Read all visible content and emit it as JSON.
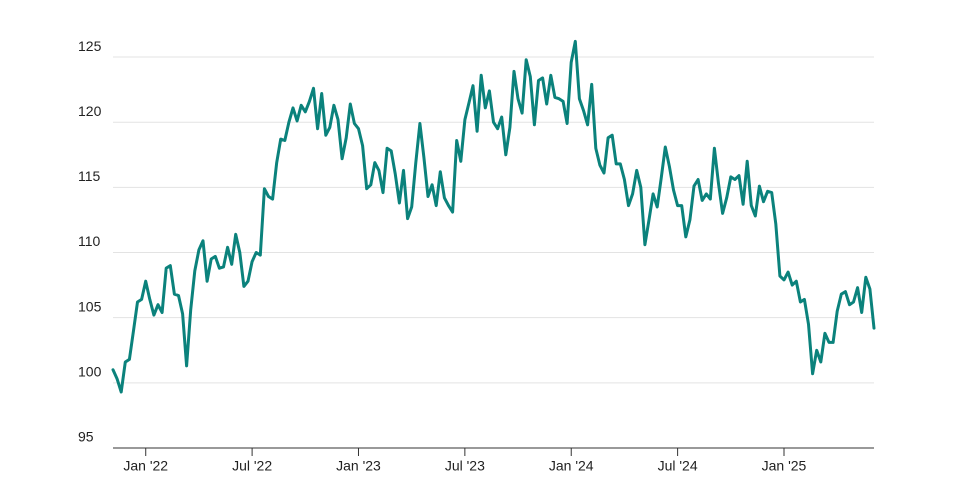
{
  "chart_data": {
    "type": "line",
    "categories": [
      null,
      null,
      null,
      null,
      null,
      null,
      null,
      null,
      "Jan '22",
      null,
      null,
      null,
      null,
      null,
      null,
      null,
      null,
      null,
      null,
      null,
      null,
      null,
      null,
      null,
      null,
      null,
      null,
      null,
      null,
      null,
      null,
      null,
      null,
      null,
      "Jul '22",
      null,
      null,
      null,
      null,
      null,
      null,
      null,
      null,
      null,
      null,
      null,
      null,
      null,
      null,
      null,
      null,
      null,
      null,
      null,
      null,
      null,
      null,
      null,
      null,
      null,
      "Jan '23",
      null,
      null,
      null,
      null,
      null,
      null,
      null,
      null,
      null,
      null,
      null,
      null,
      null,
      null,
      null,
      null,
      null,
      null,
      null,
      null,
      null,
      null,
      null,
      null,
      null,
      "Jul '23",
      null,
      null,
      null,
      null,
      null,
      null,
      null,
      null,
      null,
      null,
      null,
      null,
      null,
      null,
      null,
      null,
      null,
      null,
      null,
      null,
      null,
      null,
      null,
      null,
      null,
      "Jan '24",
      null,
      null,
      null,
      null,
      null,
      null,
      null,
      null,
      null,
      null,
      null,
      null,
      null,
      null,
      null,
      null,
      null,
      null,
      null,
      null,
      null,
      null,
      null,
      null,
      null,
      "Jul '24",
      null,
      null,
      null,
      null,
      null,
      null,
      null,
      null,
      null,
      null,
      null,
      null,
      null,
      null,
      null,
      null,
      null,
      null,
      null,
      null,
      null,
      null,
      null,
      null,
      null,
      "Jan '25",
      null,
      null,
      null,
      null,
      null,
      null,
      null,
      null,
      null,
      null,
      null,
      null,
      null,
      null,
      null,
      null,
      null,
      null,
      null,
      null,
      null,
      null
    ],
    "series": [
      {
        "color": "#0b827c",
        "values": [
          101.0,
          100.3,
          99.3,
          101.6,
          101.8,
          104.0,
          106.2,
          106.4,
          107.8,
          106.4,
          105.2,
          106.0,
          105.4,
          108.8,
          109.0,
          106.8,
          106.7,
          105.3,
          101.3,
          105.6,
          108.6,
          110.2,
          110.9,
          107.8,
          109.5,
          109.7,
          108.8,
          108.9,
          110.4,
          109.1,
          111.4,
          110.0,
          107.4,
          107.8,
          109.3,
          110.0,
          109.8,
          114.9,
          114.3,
          114.1,
          116.9,
          118.7,
          118.6,
          120.0,
          121.1,
          120.1,
          121.3,
          120.8,
          121.6,
          122.6,
          119.5,
          122.2,
          119.0,
          119.6,
          121.3,
          120.2,
          117.2,
          118.8,
          121.4,
          119.9,
          119.5,
          118.2,
          114.9,
          115.2,
          116.9,
          116.3,
          114.6,
          118.0,
          117.8,
          116.0,
          113.8,
          116.3,
          112.6,
          113.5,
          116.9,
          119.9,
          117.3,
          114.3,
          115.2,
          113.6,
          116.2,
          114.2,
          113.6,
          113.1,
          118.6,
          117.0,
          120.2,
          121.5,
          122.8,
          119.3,
          123.6,
          121.1,
          122.4,
          120.0,
          119.5,
          120.4,
          117.5,
          119.6,
          123.9,
          121.8,
          120.7,
          124.8,
          123.5,
          119.8,
          123.2,
          123.4,
          121.4,
          123.6,
          121.9,
          121.8,
          121.6,
          119.9,
          124.6,
          126.2,
          121.8,
          120.9,
          119.8,
          122.9,
          118.0,
          116.7,
          116.1,
          118.8,
          119.0,
          116.8,
          116.8,
          115.6,
          113.6,
          114.5,
          116.3,
          115.0,
          110.6,
          112.5,
          114.5,
          113.5,
          115.7,
          118.1,
          116.6,
          114.8,
          113.6,
          113.6,
          111.2,
          112.5,
          115.1,
          115.6,
          114.0,
          114.5,
          114.1,
          118.0,
          115.3,
          113.0,
          114.2,
          115.8,
          115.6,
          115.9,
          113.7,
          117.0,
          113.6,
          112.8,
          115.1,
          113.9,
          114.7,
          114.6,
          112.2,
          108.2,
          107.9,
          108.5,
          107.5,
          107.8,
          106.2,
          106.4,
          104.5,
          100.7,
          102.5,
          101.6,
          103.8,
          103.1,
          103.1,
          105.5,
          106.8,
          107.0,
          106.0,
          106.2,
          107.3,
          105.4,
          108.1,
          107.2,
          104.2
        ]
      }
    ],
    "ylim": [
      95,
      126.5
    ],
    "yticks": [
      95,
      100,
      105,
      110,
      115,
      120,
      125
    ],
    "grid": true
  }
}
